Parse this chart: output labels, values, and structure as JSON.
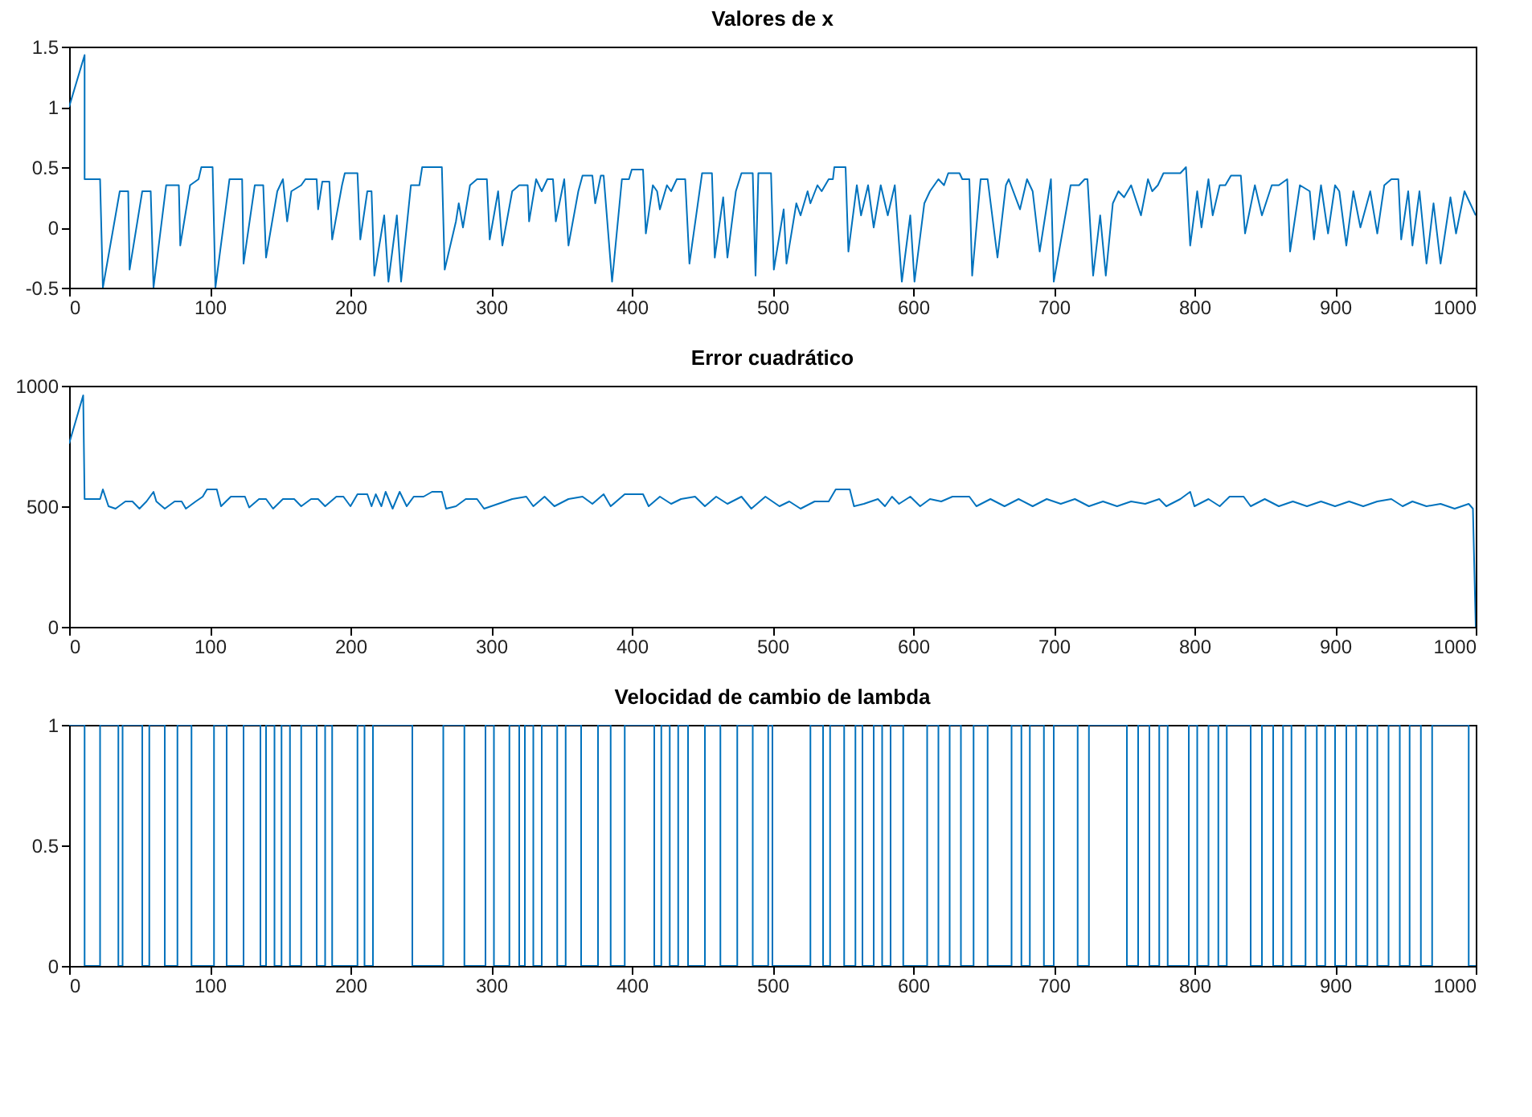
{
  "chart_data": [
    {
      "type": "line",
      "title": "Valores de x",
      "color": "#0072bd",
      "xlim": [
        0,
        1000
      ],
      "xticks": [
        0,
        100,
        200,
        300,
        400,
        500,
        600,
        700,
        800,
        900,
        1000
      ],
      "ylim": [
        -0.5,
        1.5
      ],
      "yticks": [
        -0.5,
        0,
        0.5,
        1,
        1.5
      ],
      "x": [
        0,
        11,
        11,
        22,
        24,
        36,
        42,
        43,
        52,
        58,
        60,
        69,
        78,
        79,
        86,
        92,
        94,
        102,
        104,
        114,
        123,
        124,
        132,
        138,
        140,
        148,
        152,
        155,
        158,
        165,
        168,
        176,
        177,
        180,
        185,
        187,
        194,
        196,
        205,
        207,
        212,
        215,
        217,
        224,
        227,
        233,
        236,
        243,
        249,
        251,
        265,
        267,
        275,
        277,
        280,
        285,
        290,
        297,
        299,
        305,
        308,
        315,
        320,
        326,
        327,
        332,
        336,
        340,
        344,
        346,
        352,
        355,
        362,
        365,
        372,
        374,
        378,
        380,
        386,
        393,
        398,
        400,
        408,
        410,
        415,
        418,
        420,
        425,
        428,
        432,
        438,
        441,
        450,
        457,
        459,
        465,
        468,
        474,
        478,
        486,
        488,
        490,
        499,
        501,
        508,
        510,
        517,
        520,
        525,
        527,
        532,
        535,
        540,
        543,
        544,
        552,
        554,
        560,
        563,
        568,
        572,
        577,
        582,
        587,
        592,
        598,
        601,
        608,
        612,
        618,
        622,
        625,
        633,
        635,
        640,
        642,
        648,
        653,
        660,
        666,
        668,
        676,
        681,
        685,
        690,
        698,
        700,
        712,
        718,
        722,
        724,
        728,
        733,
        737,
        742,
        746,
        750,
        755,
        762,
        767,
        770,
        774,
        778,
        790,
        794,
        797,
        802,
        805,
        810,
        813,
        818,
        822,
        826,
        833,
        836,
        843,
        848,
        855,
        860,
        866,
        868,
        875,
        882,
        885,
        890,
        895,
        900,
        903,
        908,
        913,
        918,
        925,
        930,
        935,
        940,
        945,
        947,
        952,
        955,
        960,
        965,
        970,
        975,
        982,
        986,
        992,
        996,
        1000
      ],
      "values": [
        1.0,
        1.43,
        0.4,
        0.4,
        -0.5,
        0.3,
        0.3,
        -0.35,
        0.3,
        0.3,
        -0.5,
        0.35,
        0.35,
        -0.15,
        0.35,
        0.4,
        0.5,
        0.5,
        -0.5,
        0.4,
        0.4,
        -0.3,
        0.35,
        0.35,
        -0.25,
        0.3,
        0.4,
        0.05,
        0.3,
        0.35,
        0.4,
        0.4,
        0.15,
        0.38,
        0.38,
        -0.1,
        0.35,
        0.45,
        0.45,
        -0.1,
        0.3,
        0.3,
        -0.4,
        0.1,
        -0.45,
        0.1,
        -0.45,
        0.35,
        0.35,
        0.5,
        0.5,
        -0.35,
        0.05,
        0.2,
        0.0,
        0.35,
        0.4,
        0.4,
        -0.1,
        0.3,
        -0.15,
        0.3,
        0.35,
        0.35,
        0.05,
        0.4,
        0.3,
        0.4,
        0.4,
        0.05,
        0.4,
        -0.15,
        0.3,
        0.43,
        0.43,
        0.2,
        0.43,
        0.43,
        -0.45,
        0.4,
        0.4,
        0.48,
        0.48,
        -0.05,
        0.35,
        0.3,
        0.15,
        0.35,
        0.3,
        0.4,
        0.4,
        -0.3,
        0.45,
        0.45,
        -0.25,
        0.25,
        -0.25,
        0.3,
        0.45,
        0.45,
        -0.4,
        0.45,
        0.45,
        -0.35,
        0.15,
        -0.3,
        0.2,
        0.1,
        0.3,
        0.2,
        0.35,
        0.3,
        0.4,
        0.4,
        0.5,
        0.5,
        -0.2,
        0.35,
        0.1,
        0.35,
        0.0,
        0.35,
        0.1,
        0.35,
        -0.45,
        0.1,
        -0.45,
        0.2,
        0.3,
        0.4,
        0.35,
        0.45,
        0.45,
        0.4,
        0.4,
        -0.4,
        0.4,
        0.4,
        -0.25,
        0.35,
        0.4,
        0.15,
        0.4,
        0.3,
        -0.2,
        0.4,
        -0.45,
        0.35,
        0.35,
        0.4,
        0.4,
        -0.4,
        0.1,
        -0.4,
        0.2,
        0.3,
        0.25,
        0.35,
        0.1,
        0.4,
        0.3,
        0.35,
        0.45,
        0.45,
        0.5,
        -0.15,
        0.3,
        0.0,
        0.4,
        0.1,
        0.35,
        0.35,
        0.43,
        0.43,
        -0.05,
        0.35,
        0.1,
        0.35,
        0.35,
        0.4,
        -0.2,
        0.35,
        0.3,
        -0.1,
        0.35,
        -0.05,
        0.35,
        0.3,
        -0.15,
        0.3,
        0.0,
        0.3,
        -0.05,
        0.35,
        0.4,
        0.4,
        -0.1,
        0.3,
        -0.15,
        0.3,
        -0.3,
        0.2,
        -0.3,
        0.25,
        -0.05,
        0.3,
        0.2,
        0.1
      ]
    },
    {
      "type": "line",
      "title": "Error cuadrático",
      "color": "#0072bd",
      "xlim": [
        0,
        1000
      ],
      "xticks": [
        0,
        100,
        200,
        300,
        400,
        500,
        600,
        700,
        800,
        900,
        1000
      ],
      "ylim": [
        0,
        1000
      ],
      "yticks": [
        0,
        500,
        1000
      ],
      "x": [
        0,
        10,
        11,
        22,
        24,
        28,
        33,
        40,
        45,
        50,
        55,
        60,
        62,
        68,
        75,
        80,
        83,
        90,
        95,
        98,
        105,
        108,
        115,
        125,
        128,
        135,
        140,
        145,
        152,
        160,
        165,
        172,
        177,
        182,
        190,
        195,
        200,
        205,
        212,
        215,
        218,
        222,
        225,
        230,
        235,
        240,
        245,
        252,
        258,
        265,
        268,
        275,
        282,
        290,
        295,
        305,
        315,
        325,
        330,
        338,
        345,
        355,
        365,
        372,
        380,
        385,
        395,
        408,
        412,
        420,
        428,
        435,
        445,
        452,
        460,
        468,
        478,
        485,
        495,
        505,
        512,
        520,
        530,
        540,
        545,
        555,
        558,
        565,
        575,
        580,
        585,
        590,
        598,
        605,
        612,
        620,
        628,
        640,
        645,
        655,
        665,
        675,
        685,
        695,
        705,
        715,
        725,
        735,
        745,
        755,
        765,
        775,
        780,
        790,
        797,
        800,
        810,
        818,
        825,
        835,
        840,
        850,
        860,
        870,
        880,
        890,
        900,
        910,
        920,
        930,
        940,
        948,
        955,
        965,
        975,
        985,
        995,
        998,
        1000
      ],
      "values": [
        760,
        960,
        530,
        530,
        570,
        500,
        490,
        520,
        520,
        490,
        520,
        560,
        520,
        490,
        520,
        520,
        490,
        520,
        540,
        570,
        570,
        500,
        540,
        540,
        495,
        530,
        530,
        490,
        530,
        530,
        500,
        530,
        530,
        500,
        540,
        540,
        500,
        550,
        550,
        500,
        550,
        500,
        560,
        490,
        560,
        500,
        540,
        540,
        560,
        560,
        490,
        500,
        530,
        530,
        490,
        510,
        530,
        540,
        500,
        540,
        500,
        530,
        540,
        510,
        550,
        500,
        550,
        550,
        500,
        540,
        510,
        530,
        540,
        500,
        540,
        510,
        540,
        490,
        540,
        500,
        520,
        490,
        520,
        520,
        570,
        570,
        500,
        510,
        530,
        500,
        540,
        510,
        540,
        500,
        530,
        520,
        540,
        540,
        500,
        530,
        500,
        530,
        500,
        530,
        510,
        530,
        500,
        520,
        500,
        520,
        510,
        530,
        500,
        530,
        560,
        500,
        530,
        500,
        540,
        540,
        500,
        530,
        500,
        520,
        500,
        520,
        500,
        520,
        500,
        520,
        530,
        500,
        520,
        500,
        510,
        490,
        510,
        490,
        0
      ]
    },
    {
      "type": "step",
      "title": "Velocidad de cambio de lambda",
      "color": "#0072bd",
      "xlim": [
        0,
        1000
      ],
      "xticks": [
        0,
        100,
        200,
        300,
        400,
        500,
        600,
        700,
        800,
        900,
        1000
      ],
      "ylim": [
        0,
        1
      ],
      "yticks": [
        0,
        0.5,
        1
      ],
      "x": [
        0,
        11,
        22,
        35,
        38,
        52,
        57,
        68,
        77,
        87,
        103,
        112,
        124,
        136,
        140,
        146,
        151,
        157,
        165,
        176,
        182,
        187,
        205,
        210,
        216,
        244,
        266,
        281,
        296,
        302,
        313,
        320,
        324,
        330,
        336,
        347,
        353,
        364,
        376,
        385,
        395,
        416,
        421,
        427,
        433,
        440,
        452,
        463,
        475,
        486,
        497,
        500,
        527,
        536,
        541,
        551,
        559,
        564,
        572,
        578,
        584,
        593,
        610,
        618,
        626,
        634,
        643,
        653,
        670,
        677,
        683,
        693,
        700,
        717,
        725,
        752,
        760,
        768,
        775,
        781,
        796,
        802,
        810,
        817,
        823,
        840,
        848,
        856,
        863,
        869,
        879,
        887,
        893,
        900,
        908,
        915,
        923,
        930,
        938,
        946,
        953,
        961,
        969,
        995,
        1000
      ],
      "values": [
        1,
        0,
        1,
        0,
        1,
        0,
        1,
        0,
        1,
        0,
        1,
        0,
        1,
        0,
        1,
        0,
        1,
        0,
        1,
        0,
        1,
        0,
        1,
        0,
        1,
        0,
        1,
        0,
        1,
        0,
        1,
        0,
        1,
        0,
        1,
        0,
        1,
        0,
        1,
        0,
        1,
        0,
        1,
        0,
        1,
        0,
        1,
        0,
        1,
        0,
        1,
        0,
        1,
        0,
        1,
        0,
        1,
        0,
        1,
        0,
        1,
        0,
        1,
        0,
        1,
        0,
        1,
        0,
        1,
        0,
        1,
        0,
        1,
        0,
        1,
        0,
        1,
        0,
        1,
        0,
        1,
        0,
        1,
        0,
        1,
        0,
        1,
        0,
        1,
        0,
        1,
        0,
        1,
        0,
        1,
        0,
        1,
        0,
        1,
        0,
        1,
        0,
        1,
        0,
        0
      ]
    }
  ]
}
